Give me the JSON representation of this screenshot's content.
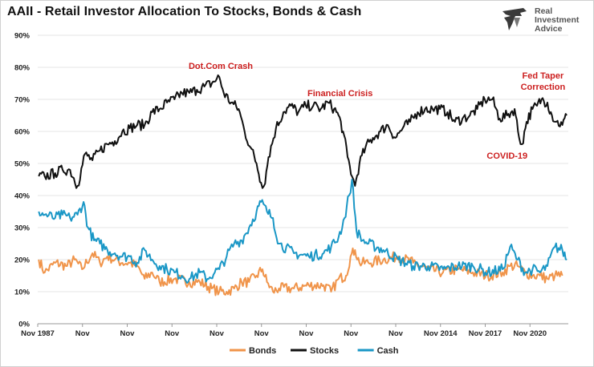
{
  "header": {
    "title": "AAII - Retail Investor Allocation To Stocks, Bonds & Cash",
    "logo_lines": [
      "Real",
      "Investment",
      "Advice"
    ]
  },
  "chart_data": {
    "type": "line",
    "title": "AAII - Retail Investor Allocation To Stocks, Bonds & Cash",
    "xlabel": "",
    "ylabel": "",
    "ylim": [
      0,
      90
    ],
    "y_ticks": [
      "0%",
      "10%",
      "20%",
      "30%",
      "40%",
      "50%",
      "60%",
      "70%",
      "80%",
      "90%"
    ],
    "x_range": [
      1987.83,
      2023.4
    ],
    "x_ticks": [
      {
        "x": 1987.83,
        "label": "Nov 1987"
      },
      {
        "x": 1990.83,
        "label": "Nov"
      },
      {
        "x": 1993.83,
        "label": "Nov"
      },
      {
        "x": 1996.83,
        "label": "Nov"
      },
      {
        "x": 1999.83,
        "label": "Nov"
      },
      {
        "x": 2002.83,
        "label": "Nov"
      },
      {
        "x": 2005.83,
        "label": "Nov"
      },
      {
        "x": 2008.83,
        "label": "Nov"
      },
      {
        "x": 2011.83,
        "label": "Nov"
      },
      {
        "x": 2014.83,
        "label": "Nov 2014"
      },
      {
        "x": 2017.83,
        "label": "Nov 2017"
      },
      {
        "x": 2020.83,
        "label": "Nov 2020"
      }
    ],
    "legend_position": "bottom-center",
    "series": [
      {
        "name": "Bonds",
        "color": "#f0944a",
        "points": [
          [
            1987.9,
            20
          ],
          [
            1988.3,
            16
          ],
          [
            1989,
            19
          ],
          [
            1989.8,
            18
          ],
          [
            1990.3,
            20
          ],
          [
            1990.8,
            17
          ],
          [
            1991.5,
            22
          ],
          [
            1992,
            19
          ],
          [
            1992.5,
            21
          ],
          [
            1993,
            20
          ],
          [
            1993.5,
            19
          ],
          [
            1994,
            19
          ],
          [
            1994.5,
            18
          ],
          [
            1995,
            14
          ],
          [
            1995.5,
            16
          ],
          [
            1996,
            13
          ],
          [
            1997,
            14
          ],
          [
            1998,
            13
          ],
          [
            1998.7,
            13
          ],
          [
            1999.5,
            11
          ],
          [
            2000,
            10
          ],
          [
            2000.5,
            10
          ],
          [
            2001,
            11
          ],
          [
            2001.5,
            13
          ],
          [
            2002,
            13
          ],
          [
            2002.5,
            15
          ],
          [
            2002.9,
            17
          ],
          [
            2003.2,
            13
          ],
          [
            2003.6,
            10
          ],
          [
            2004,
            11
          ],
          [
            2005,
            11
          ],
          [
            2006,
            12
          ],
          [
            2007,
            12
          ],
          [
            2007.5,
            10
          ],
          [
            2008,
            14
          ],
          [
            2008.5,
            15
          ],
          [
            2008.8,
            21
          ],
          [
            2009.1,
            23
          ],
          [
            2009.4,
            19
          ],
          [
            2010,
            19
          ],
          [
            2011,
            20
          ],
          [
            2012,
            21
          ],
          [
            2013,
            19
          ],
          [
            2014,
            17
          ],
          [
            2015,
            16
          ],
          [
            2016,
            17
          ],
          [
            2017,
            16
          ],
          [
            2018,
            15
          ],
          [
            2019,
            16
          ],
          [
            2019.5,
            18
          ],
          [
            2020,
            18
          ],
          [
            2020.5,
            16
          ],
          [
            2021,
            15
          ],
          [
            2021.5,
            15
          ],
          [
            2022,
            14
          ],
          [
            2022.5,
            15
          ],
          [
            2023,
            15
          ]
        ]
      },
      {
        "name": "Stocks",
        "color": "#111111",
        "points": [
          [
            1987.9,
            46
          ],
          [
            1988.3,
            46
          ],
          [
            1989,
            47
          ],
          [
            1989.5,
            48
          ],
          [
            1990,
            48
          ],
          [
            1990.5,
            43
          ],
          [
            1991,
            53
          ],
          [
            1991.5,
            51
          ],
          [
            1992,
            54
          ],
          [
            1992.5,
            56
          ],
          [
            1993,
            57
          ],
          [
            1993.5,
            60
          ],
          [
            1994,
            61
          ],
          [
            1994.5,
            62
          ],
          [
            1995,
            62
          ],
          [
            1995.5,
            66
          ],
          [
            1996,
            67
          ],
          [
            1996.5,
            69
          ],
          [
            1997,
            70
          ],
          [
            1997.5,
            72
          ],
          [
            1998,
            72
          ],
          [
            1998.5,
            73
          ],
          [
            1999,
            74
          ],
          [
            1999.5,
            75
          ],
          [
            2000,
            77
          ],
          [
            2000.3,
            72
          ],
          [
            2000.8,
            69
          ],
          [
            2001.3,
            67
          ],
          [
            2001.7,
            60
          ],
          [
            2002.1,
            55
          ],
          [
            2002.5,
            50
          ],
          [
            2002.8,
            44
          ],
          [
            2003,
            43
          ],
          [
            2003.3,
            52
          ],
          [
            2003.8,
            61
          ],
          [
            2004.3,
            66
          ],
          [
            2004.8,
            68
          ],
          [
            2005.3,
            66
          ],
          [
            2005.8,
            68
          ],
          [
            2006.3,
            68
          ],
          [
            2006.8,
            67
          ],
          [
            2007.3,
            69
          ],
          [
            2007.7,
            67
          ],
          [
            2008,
            65
          ],
          [
            2008.3,
            60
          ],
          [
            2008.6,
            52
          ],
          [
            2008.9,
            46
          ],
          [
            2009.1,
            43
          ],
          [
            2009.4,
            50
          ],
          [
            2009.8,
            55
          ],
          [
            2010.3,
            58
          ],
          [
            2010.8,
            60
          ],
          [
            2011.3,
            62
          ],
          [
            2011.8,
            58
          ],
          [
            2012.3,
            61
          ],
          [
            2012.8,
            63
          ],
          [
            2013.3,
            66
          ],
          [
            2013.8,
            67
          ],
          [
            2014.3,
            67
          ],
          [
            2014.8,
            67
          ],
          [
            2015.3,
            66
          ],
          [
            2015.8,
            63
          ],
          [
            2016.3,
            64
          ],
          [
            2016.8,
            65
          ],
          [
            2017.3,
            67
          ],
          [
            2017.8,
            70
          ],
          [
            2018.3,
            70
          ],
          [
            2018.8,
            64
          ],
          [
            2019.3,
            65
          ],
          [
            2019.8,
            67
          ],
          [
            2020.1,
            58
          ],
          [
            2020.3,
            56
          ],
          [
            2020.6,
            63
          ],
          [
            2021,
            67
          ],
          [
            2021.3,
            68
          ],
          [
            2021.6,
            70
          ],
          [
            2022,
            69
          ],
          [
            2022.3,
            65
          ],
          [
            2022.6,
            63
          ],
          [
            2023,
            62
          ],
          [
            2023.3,
            65
          ]
        ]
      },
      {
        "name": "Cash",
        "color": "#1a97c6",
        "points": [
          [
            1987.9,
            35
          ],
          [
            1988.3,
            34
          ],
          [
            1989,
            33
          ],
          [
            1989.5,
            34
          ],
          [
            1990,
            33
          ],
          [
            1990.5,
            34
          ],
          [
            1990.9,
            38
          ],
          [
            1991.2,
            30
          ],
          [
            1991.6,
            26
          ],
          [
            1992,
            25
          ],
          [
            1992.5,
            23
          ],
          [
            1993,
            22
          ],
          [
            1993.5,
            21
          ],
          [
            1994,
            21
          ],
          [
            1994.5,
            19
          ],
          [
            1995,
            23
          ],
          [
            1995.5,
            20
          ],
          [
            1996,
            18
          ],
          [
            1996.5,
            17
          ],
          [
            1997,
            16
          ],
          [
            1997.5,
            15
          ],
          [
            1998,
            14
          ],
          [
            1998.7,
            16
          ],
          [
            1999.2,
            14
          ],
          [
            1999.7,
            16
          ],
          [
            2000,
            17
          ],
          [
            2000.5,
            21
          ],
          [
            2001,
            25
          ],
          [
            2001.5,
            26
          ],
          [
            2002,
            30
          ],
          [
            2002.5,
            35
          ],
          [
            2002.8,
            38
          ],
          [
            2003.2,
            35
          ],
          [
            2003.6,
            33
          ],
          [
            2004,
            25
          ],
          [
            2005,
            22
          ],
          [
            2006,
            21
          ],
          [
            2007,
            22
          ],
          [
            2007.5,
            24
          ],
          [
            2008,
            27
          ],
          [
            2008.4,
            33
          ],
          [
            2008.7,
            40
          ],
          [
            2008.9,
            45
          ],
          [
            2009.2,
            29
          ],
          [
            2009.6,
            26
          ],
          [
            2010,
            25
          ],
          [
            2011,
            23
          ],
          [
            2012,
            20
          ],
          [
            2013,
            18
          ],
          [
            2014,
            18
          ],
          [
            2015,
            17
          ],
          [
            2016,
            18
          ],
          [
            2017,
            18
          ],
          [
            2018,
            16
          ],
          [
            2019,
            17
          ],
          [
            2019.5,
            24
          ],
          [
            2020,
            20
          ],
          [
            2020.5,
            16
          ],
          [
            2021,
            17
          ],
          [
            2021.5,
            16
          ],
          [
            2022,
            18
          ],
          [
            2022.5,
            24
          ],
          [
            2023,
            23
          ],
          [
            2023.3,
            20
          ]
        ]
      }
    ],
    "annotations": [
      {
        "text": "Dot.Com Crash",
        "x": 2000.1,
        "y": 79.5,
        "color": "#cc1f1f"
      },
      {
        "text": "Financial Crisis",
        "x": 2008.1,
        "y": 71,
        "color": "#cc1f1f"
      },
      {
        "text": "Fed Taper",
        "x": 2021.7,
        "y": 76.5,
        "color": "#cc1f1f"
      },
      {
        "text": "Correction",
        "x": 2021.7,
        "y": 73,
        "color": "#cc1f1f"
      },
      {
        "text": "COVID-19",
        "x": 2019.3,
        "y": 51.5,
        "color": "#cc1f1f"
      }
    ]
  }
}
